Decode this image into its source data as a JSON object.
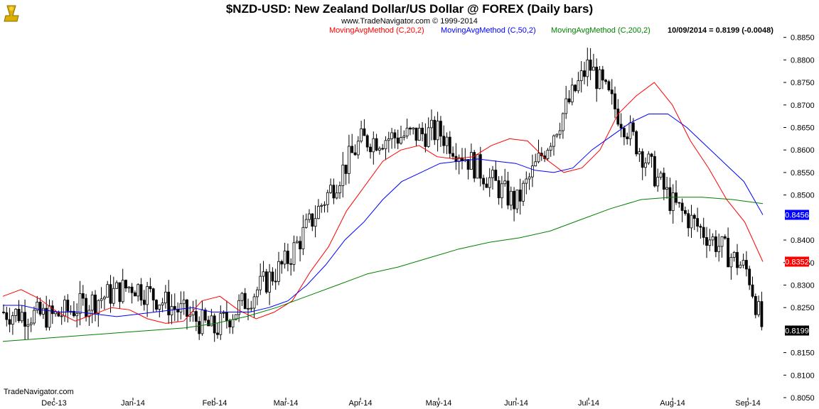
{
  "header": {
    "title": "$NZD-USD:  New Zealand Dollar/US Dollar @ FOREX  (Daily bars)",
    "copyright": "www.TradeNavigator.com © 1999-2014",
    "footer_brand": "TradeNavigator.com"
  },
  "chart_data": {
    "type": "line",
    "instrument": "$NZD-USD",
    "bar_type": "Daily bars (OHLC)",
    "ylim": [
      0.805,
      0.887
    ],
    "y_ticks": [
      "0.8850",
      "0.8800",
      "0.8750",
      "0.8700",
      "0.8650",
      "0.8600",
      "0.8550",
      "0.8500",
      "0.8400",
      "0.8350",
      "0.8300",
      "0.8250",
      "0.8150",
      "0.8100",
      "0.8050"
    ],
    "x_ticks": [
      "Dec-13",
      "Jan-14",
      "Feb-14",
      "Mar-14",
      "Apr-14",
      "May-14",
      "Jun-14",
      "Jul-14",
      "Aug-14",
      "Sep-14"
    ],
    "legend": [
      {
        "name": "MovingAvgMethod (C,20,2)",
        "color": "#ff0000"
      },
      {
        "name": "MovingAvgMethod (C,50,2)",
        "color": "#0000ff"
      },
      {
        "name": "MovingAvgMethod (C,200,2)",
        "color": "#008000"
      },
      {
        "name": "10/09/2014 = 0.8199 (-0.0048)",
        "color": "#000000"
      }
    ],
    "last_value_badges": [
      {
        "value": "0.8456",
        "color": "#0000ff"
      },
      {
        "value": "0.8352",
        "color": "#ff0000"
      },
      {
        "value": "0.8199",
        "color": "#000000"
      }
    ],
    "close_path_month_anchors": [
      {
        "month": "Dec-13",
        "close": 0.823
      },
      {
        "month": "Jan-14",
        "close": 0.83
      },
      {
        "month": "Feb-14",
        "close": 0.82
      },
      {
        "month": "Mar-14",
        "close": 0.835
      },
      {
        "month": "Apr-14",
        "close": 0.862
      },
      {
        "month": "May-14",
        "close": 0.864
      },
      {
        "month": "Jun-14",
        "close": 0.848
      },
      {
        "month": "Jul-14",
        "close": 0.879
      },
      {
        "month": "Aug-14",
        "close": 0.848
      },
      {
        "month": "Sep-14",
        "close": 0.833
      },
      {
        "month": "10/09/2014",
        "close": 0.8199
      }
    ],
    "series": [
      {
        "name": "MovingAvgMethod (C,20,2)",
        "color": "#ff0000",
        "values": [
          0.8275,
          0.829,
          0.827,
          0.824,
          0.822,
          0.8235,
          0.825,
          0.8245,
          0.8225,
          0.8215,
          0.822,
          0.8265,
          0.8275,
          0.8245,
          0.8225,
          0.824,
          0.8265,
          0.833,
          0.8385,
          0.8465,
          0.852,
          0.8575,
          0.86,
          0.861,
          0.8585,
          0.858,
          0.8585,
          0.861,
          0.8625,
          0.862,
          0.858,
          0.855,
          0.856,
          0.86,
          0.868,
          0.872,
          0.875,
          0.87,
          0.862,
          0.856,
          0.849,
          0.844,
          0.8352
        ]
      },
      {
        "name": "MovingAvgMethod (C,50,2)",
        "color": "#0000ff",
        "values": [
          0.8255,
          0.8255,
          0.8245,
          0.824,
          0.824,
          0.8235,
          0.823,
          0.8235,
          0.824,
          0.8245,
          0.825,
          0.824,
          0.824,
          0.824,
          0.825,
          0.8265,
          0.83,
          0.8345,
          0.84,
          0.844,
          0.849,
          0.853,
          0.855,
          0.857,
          0.8575,
          0.858,
          0.8575,
          0.857,
          0.8555,
          0.855,
          0.856,
          0.86,
          0.863,
          0.866,
          0.868,
          0.868,
          0.865,
          0.861,
          0.857,
          0.853,
          0.8456
        ]
      },
      {
        "name": "MovingAvgMethod (C,200,2)",
        "color": "#008000",
        "values": [
          0.8175,
          0.818,
          0.8185,
          0.819,
          0.8195,
          0.82,
          0.8205,
          0.8215,
          0.823,
          0.825,
          0.8275,
          0.83,
          0.8325,
          0.834,
          0.836,
          0.838,
          0.8395,
          0.8405,
          0.842,
          0.8445,
          0.847,
          0.849,
          0.8495,
          0.8495,
          0.849,
          0.8481
        ]
      }
    ]
  }
}
